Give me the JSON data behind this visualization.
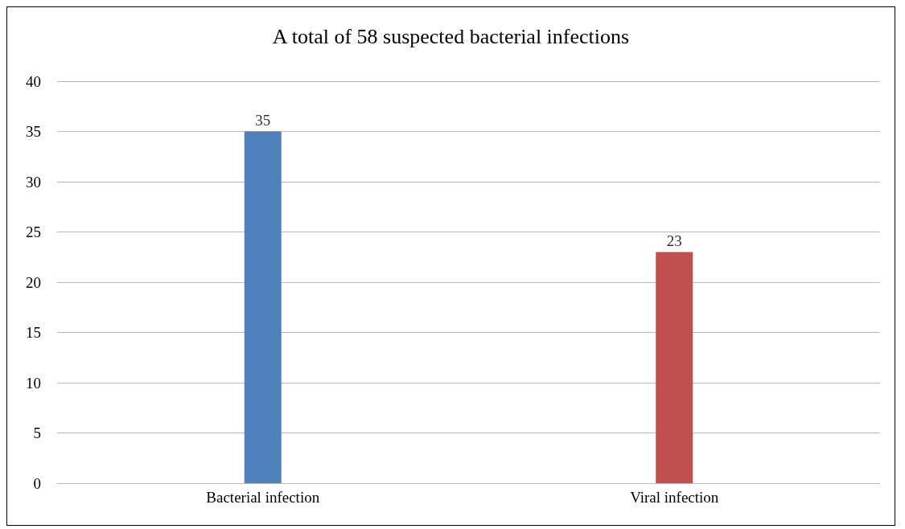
{
  "chart_data": {
    "type": "bar",
    "title": "A total of 58 suspected bacterial infections",
    "categories": [
      "Bacterial infection",
      "Viral infection"
    ],
    "values": [
      35,
      23
    ],
    "colors": [
      "#4f81bd",
      "#c0504d"
    ],
    "ylim": [
      0,
      40
    ],
    "yticks": [
      0,
      5,
      10,
      15,
      20,
      25,
      30,
      35,
      40
    ],
    "grid": "y",
    "data_labels": true
  }
}
